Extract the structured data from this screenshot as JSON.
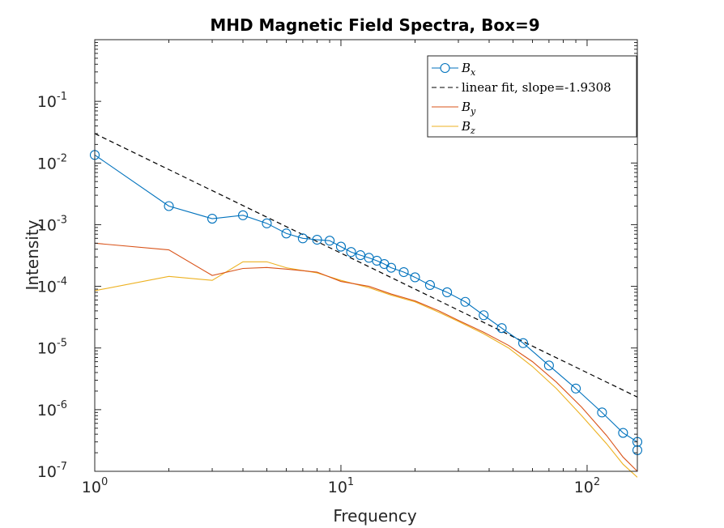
{
  "chart_data": {
    "type": "line",
    "title": "MHD Magnetic Field Spectra, Box=9",
    "xlabel": "Frequency",
    "ylabel": "Intensity",
    "xscale": "log",
    "yscale": "log",
    "xlim": [
      1,
      160
    ],
    "ylim": [
      1e-07,
      1
    ],
    "x_ticks": [
      {
        "base": "10",
        "exp": "0"
      },
      {
        "base": "10",
        "exp": "1"
      },
      {
        "base": "10",
        "exp": "2"
      }
    ],
    "y_ticks": [
      {
        "base": "10",
        "exp": "-7"
      },
      {
        "base": "10",
        "exp": "-6"
      },
      {
        "base": "10",
        "exp": "-5"
      },
      {
        "base": "10",
        "exp": "-4"
      },
      {
        "base": "10",
        "exp": "-3"
      },
      {
        "base": "10",
        "exp": "-2"
      },
      {
        "base": "10",
        "exp": "-1"
      }
    ],
    "grid": false,
    "legend_position": "top-right",
    "series": [
      {
        "name": "B_x",
        "color": "#0072BD",
        "marker": "circle",
        "line_style": "solid",
        "points": [
          [
            1,
            0.0135
          ],
          [
            2,
            0.002
          ],
          [
            3,
            0.00125
          ],
          [
            4,
            0.00142
          ],
          [
            5,
            0.00105
          ],
          [
            6,
            0.00072
          ],
          [
            7,
            0.0006
          ],
          [
            8,
            0.00057
          ],
          [
            9,
            0.00055
          ],
          [
            10,
            0.00044
          ],
          [
            11,
            0.00036
          ],
          [
            12,
            0.00032
          ],
          [
            13,
            0.00029
          ],
          [
            14,
            0.00026
          ],
          [
            15,
            0.00023
          ],
          [
            16,
            0.0002
          ],
          [
            18,
            0.00017
          ],
          [
            20,
            0.00014
          ],
          [
            23,
            0.000105
          ],
          [
            27,
            8e-05
          ],
          [
            32,
            5.6e-05
          ],
          [
            38,
            3.4e-05
          ],
          [
            45,
            2.1e-05
          ],
          [
            55,
            1.2e-05
          ],
          [
            70,
            5.2e-06
          ],
          [
            90,
            2.2e-06
          ],
          [
            115,
            9e-07
          ],
          [
            140,
            4.2e-07
          ],
          [
            160,
            3e-07
          ],
          [
            160,
            2.2e-07
          ]
        ]
      },
      {
        "name": "linear fit, slope=-1.9308",
        "color": "#000000",
        "line_style": "dashed",
        "points": [
          [
            1,
            0.03
          ],
          [
            160,
            1.6e-06
          ]
        ]
      },
      {
        "name": "B_y",
        "color": "#D95319",
        "line_style": "solid",
        "points": [
          [
            1,
            0.0005
          ],
          [
            2,
            0.00039
          ],
          [
            3,
            0.00015
          ],
          [
            4,
            0.000195
          ],
          [
            5,
            0.000202
          ],
          [
            6,
            0.00019
          ],
          [
            8,
            0.00017
          ],
          [
            10,
            0.00012
          ],
          [
            13,
            0.0001
          ],
          [
            16,
            7.5e-05
          ],
          [
            20,
            5.8e-05
          ],
          [
            25,
            4e-05
          ],
          [
            30,
            2.8e-05
          ],
          [
            38,
            1.8e-05
          ],
          [
            48,
            1.1e-05
          ],
          [
            60,
            6e-06
          ],
          [
            75,
            2.8e-06
          ],
          [
            95,
            1.1e-06
          ],
          [
            120,
            3.8e-07
          ],
          [
            140,
            1.7e-07
          ],
          [
            160,
            1e-07
          ]
        ]
      },
      {
        "name": "B_z",
        "color": "#EDB120",
        "line_style": "solid",
        "points": [
          [
            1,
            8.5e-05
          ],
          [
            2,
            0.000145
          ],
          [
            3,
            0.000125
          ],
          [
            4,
            0.00025
          ],
          [
            5,
            0.00025
          ],
          [
            6,
            0.0002
          ],
          [
            8,
            0.000165
          ],
          [
            10,
            0.000125
          ],
          [
            13,
            9.5e-05
          ],
          [
            16,
            7.2e-05
          ],
          [
            20,
            5.6e-05
          ],
          [
            25,
            3.8e-05
          ],
          [
            30,
            2.7e-05
          ],
          [
            38,
            1.7e-05
          ],
          [
            48,
            1e-05
          ],
          [
            60,
            5e-06
          ],
          [
            75,
            2.2e-06
          ],
          [
            95,
            8e-07
          ],
          [
            120,
            2.8e-07
          ],
          [
            140,
            1.3e-07
          ],
          [
            160,
            8e-08
          ]
        ]
      }
    ]
  }
}
